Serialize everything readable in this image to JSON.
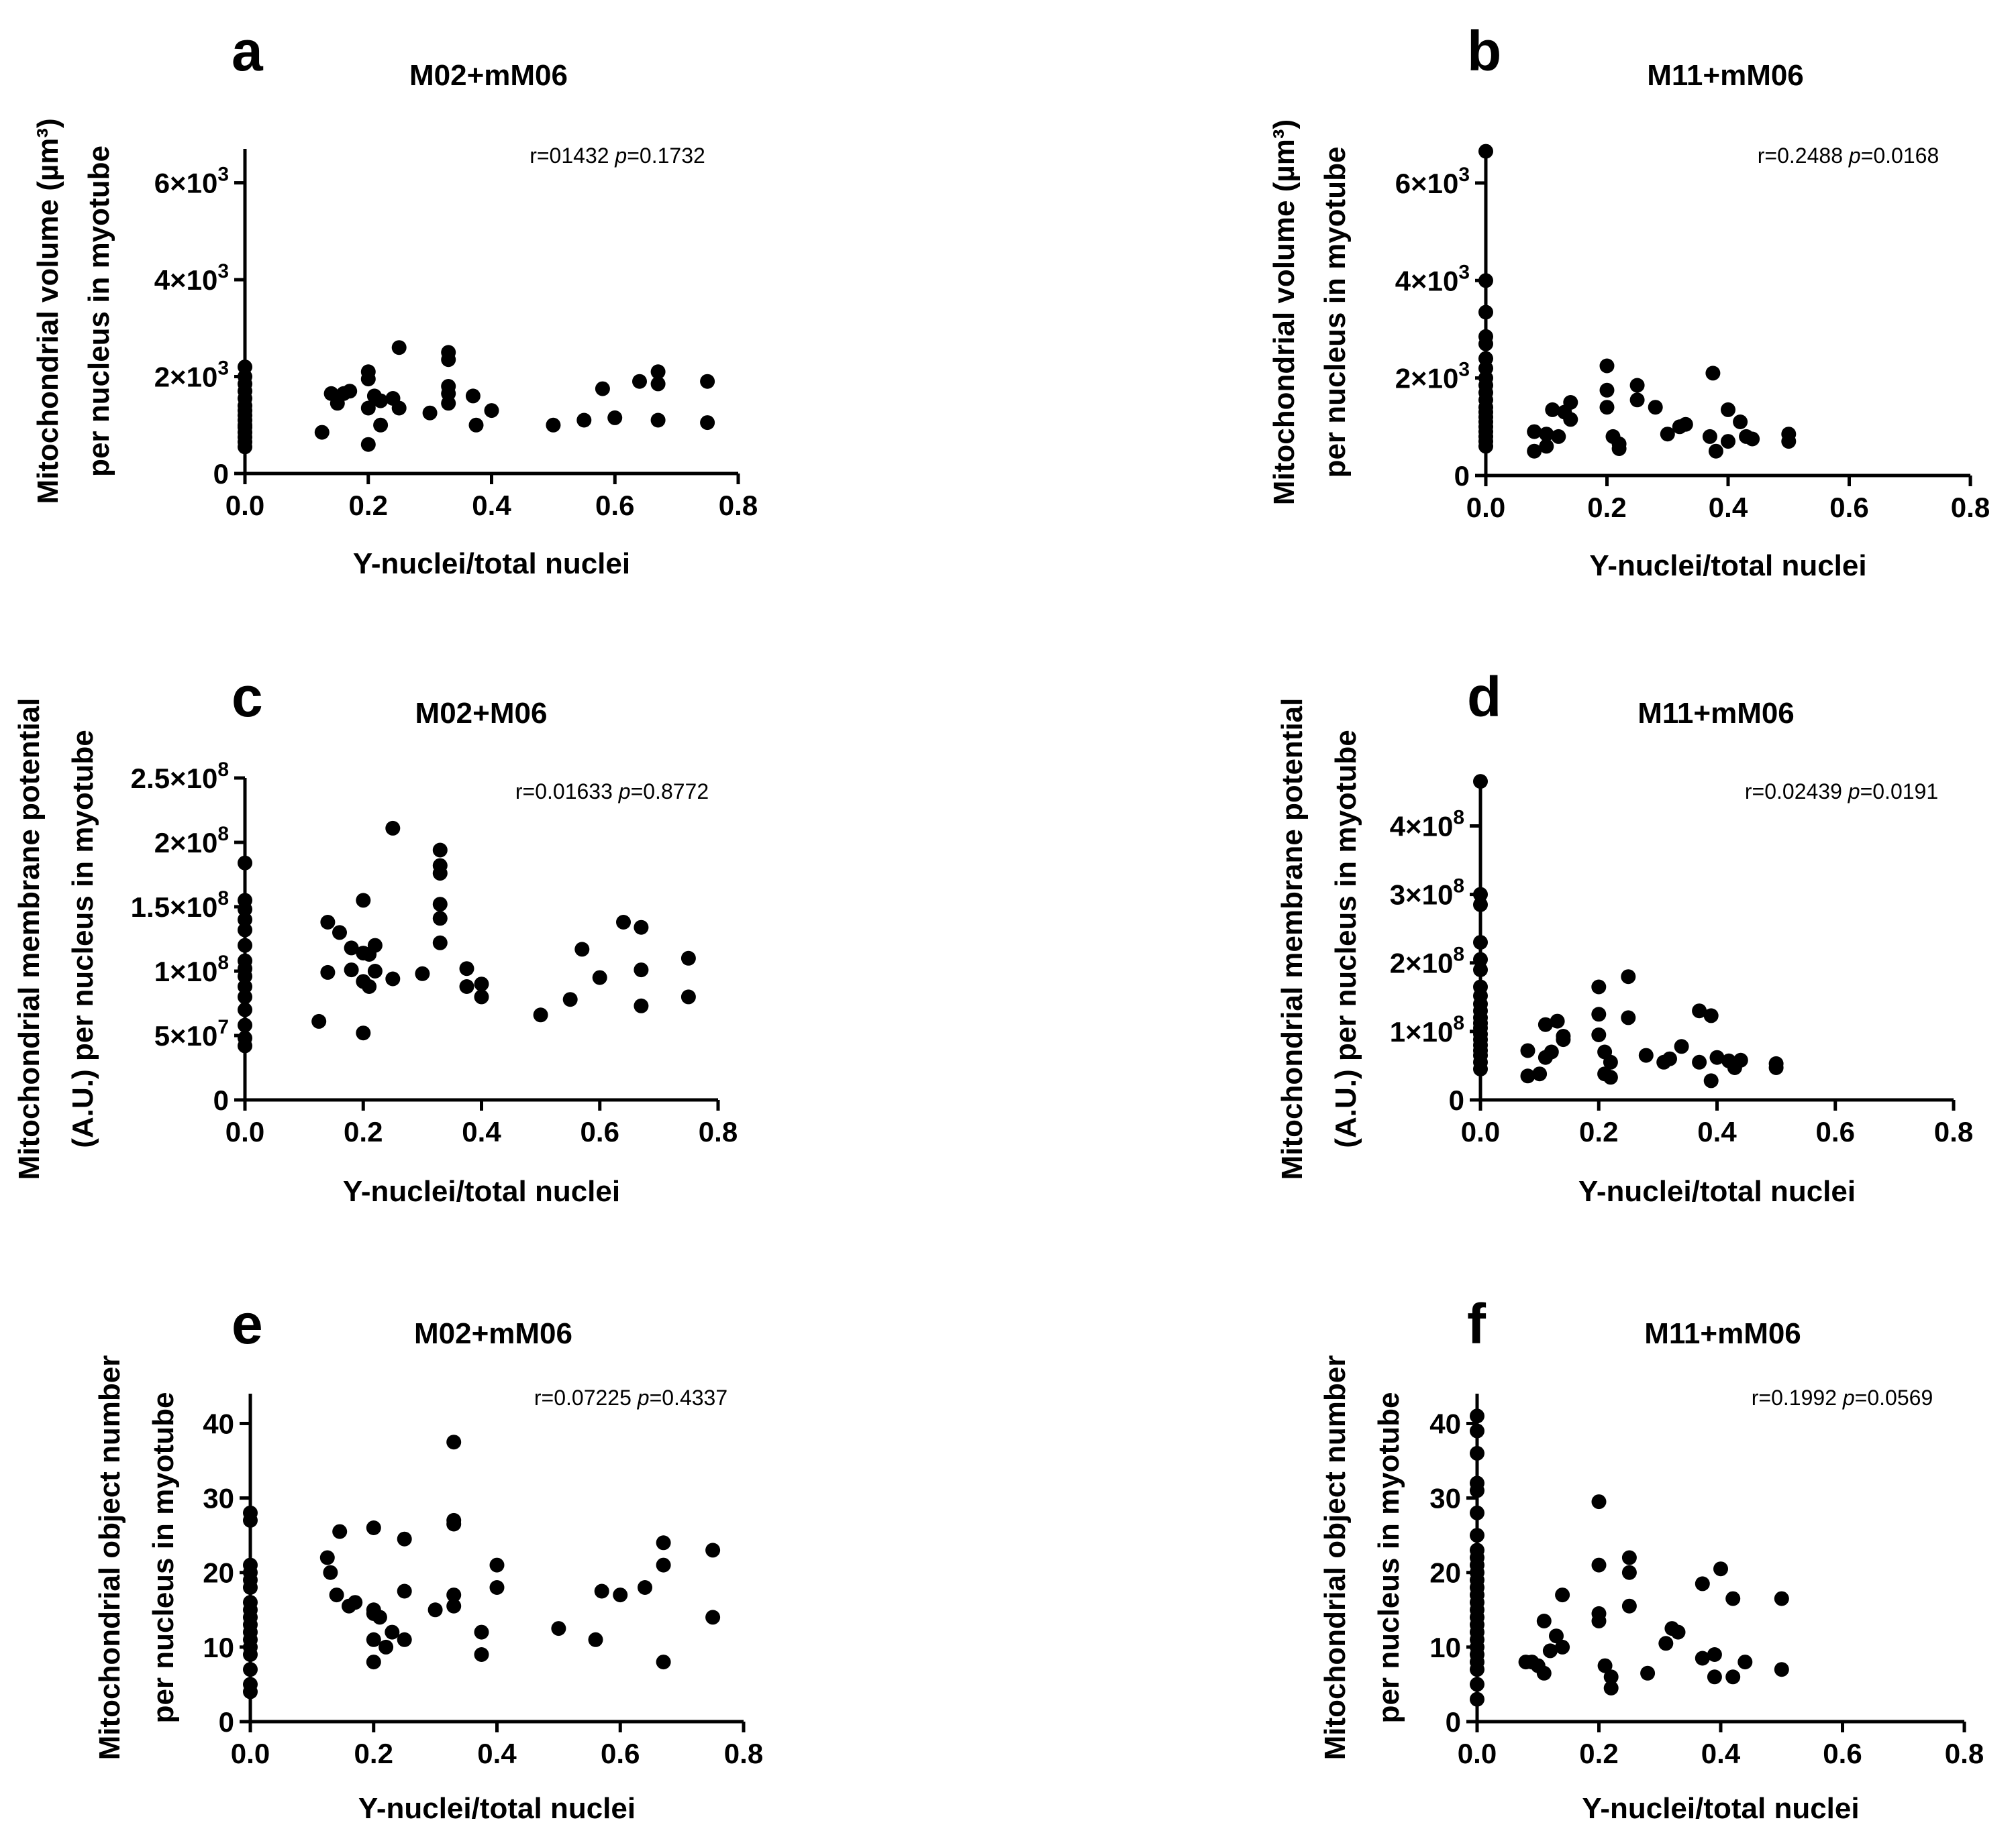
{
  "chart_data": [
    {
      "type": "scatter",
      "letter": "a",
      "title": "M02+mM06",
      "stats": {
        "r_label": "r=01432",
        "p_italic": "p",
        "p_value": "=0.1732"
      },
      "xlabel": "Y-nuclei/total nuclei",
      "ylabel_line1": "Mitochondrial volume (µm³)",
      "ylabel_line2": "per nucleus in myotube",
      "xlim": [
        0,
        0.8
      ],
      "ylim": [
        0,
        6700
      ],
      "xticks": [
        {
          "v": 0,
          "label": "0.0"
        },
        {
          "v": 0.2,
          "label": "0.2"
        },
        {
          "v": 0.4,
          "label": "0.4"
        },
        {
          "v": 0.6,
          "label": "0.6"
        },
        {
          "v": 0.8,
          "label": "0.8"
        }
      ],
      "yticks": [
        {
          "v": 0,
          "label": "0"
        },
        {
          "v": 2000,
          "base": "2×10",
          "exp": "3"
        },
        {
          "v": 4000,
          "base": "4×10",
          "exp": "3"
        },
        {
          "v": 6000,
          "base": "6×10",
          "exp": "3"
        }
      ],
      "x": [
        0,
        0,
        0,
        0,
        0,
        0,
        0,
        0,
        0,
        0,
        0,
        0,
        0,
        0,
        0,
        0.125,
        0.14,
        0.15,
        0.16,
        0.17,
        0.2,
        0.2,
        0.2,
        0.2,
        0.21,
        0.22,
        0.22,
        0.24,
        0.25,
        0.25,
        0.3,
        0.33,
        0.33,
        0.33,
        0.33,
        0.33,
        0.37,
        0.375,
        0.4,
        0.5,
        0.55,
        0.58,
        0.6,
        0.64,
        0.67,
        0.67,
        0.67,
        0.75,
        0.75
      ],
      "y": [
        2200,
        2000,
        1850,
        1700,
        1550,
        1400,
        1300,
        1200,
        1100,
        1000,
        950,
        850,
        750,
        650,
        550,
        850,
        1650,
        1450,
        1650,
        1700,
        2100,
        1950,
        1350,
        600,
        1600,
        1500,
        1000,
        1550,
        2600,
        1350,
        1250,
        2500,
        2350,
        1800,
        1650,
        1450,
        1600,
        1000,
        1300,
        1000,
        1100,
        1750,
        1150,
        1900,
        2100,
        1850,
        1100,
        1900,
        1050
      ]
    },
    {
      "type": "scatter",
      "letter": "b",
      "title": "M11+mM06",
      "stats": {
        "r_label": "r=0.2488",
        "p_italic": "p",
        "p_value": "=0.0168"
      },
      "xlabel": "Y-nuclei/total nuclei",
      "ylabel_line1": "Mitochondrial volume (µm³)",
      "ylabel_line2": "per nucleus in myotube",
      "xlim": [
        0,
        0.8
      ],
      "ylim": [
        0,
        6700
      ],
      "xticks": [
        {
          "v": 0,
          "label": "0.0"
        },
        {
          "v": 0.2,
          "label": "0.2"
        },
        {
          "v": 0.4,
          "label": "0.4"
        },
        {
          "v": 0.6,
          "label": "0.6"
        },
        {
          "v": 0.8,
          "label": "0.8"
        }
      ],
      "yticks": [
        {
          "v": 0,
          "label": "0"
        },
        {
          "v": 2000,
          "base": "2×10",
          "exp": "3"
        },
        {
          "v": 4000,
          "base": "4×10",
          "exp": "3"
        },
        {
          "v": 6000,
          "base": "6×10",
          "exp": "3"
        }
      ],
      "x": [
        0,
        0,
        0,
        0,
        0,
        0,
        0,
        0,
        0,
        0,
        0,
        0,
        0,
        0,
        0,
        0,
        0,
        0,
        0,
        0,
        0.08,
        0.08,
        0.1,
        0.1,
        0.11,
        0.12,
        0.13,
        0.14,
        0.14,
        0.2,
        0.2,
        0.2,
        0.21,
        0.22,
        0.22,
        0.25,
        0.25,
        0.28,
        0.3,
        0.32,
        0.33,
        0.37,
        0.375,
        0.38,
        0.4,
        0.4,
        0.42,
        0.43,
        0.44,
        0.5,
        0.5
      ],
      "y": [
        6650,
        4000,
        3350,
        2850,
        2700,
        2400,
        2200,
        2000,
        1850,
        1700,
        1550,
        1400,
        1300,
        1200,
        1100,
        1000,
        900,
        800,
        700,
        600,
        900,
        500,
        850,
        600,
        1350,
        800,
        1300,
        1500,
        1150,
        2250,
        1750,
        1400,
        800,
        650,
        550,
        1850,
        1550,
        1400,
        850,
        1000,
        1050,
        800,
        2100,
        500,
        1350,
        700,
        1100,
        800,
        750,
        850,
        700
      ]
    },
    {
      "type": "scatter",
      "letter": "c",
      "title": "M02+M06",
      "stats": {
        "r_label": "r=0.01633",
        "p_italic": "p",
        "p_value": "=0.8772"
      },
      "xlabel": "Y-nuclei/total nuclei",
      "ylabel_line1": "Mitochondrial membrane potential",
      "ylabel_line2": "(A.U.) per nucleus in myotube",
      "xlim": [
        0,
        0.8
      ],
      "ylim": [
        0,
        250000000
      ],
      "xticks": [
        {
          "v": 0,
          "label": "0.0"
        },
        {
          "v": 0.2,
          "label": "0.2"
        },
        {
          "v": 0.4,
          "label": "0.4"
        },
        {
          "v": 0.6,
          "label": "0.6"
        },
        {
          "v": 0.8,
          "label": "0.8"
        }
      ],
      "yticks": [
        {
          "v": 0,
          "label": "0"
        },
        {
          "v": 50000000,
          "base": "5×10",
          "exp": "7"
        },
        {
          "v": 100000000,
          "base": "1×10",
          "exp": "8"
        },
        {
          "v": 150000000,
          "base": "1.5×10",
          "exp": "8"
        },
        {
          "v": 200000000,
          "base": "2×10",
          "exp": "8"
        },
        {
          "v": 250000000,
          "base": "2.5×10",
          "exp": "8"
        }
      ],
      "x": [
        0,
        0,
        0,
        0,
        0,
        0,
        0,
        0,
        0,
        0,
        0,
        0,
        0,
        0,
        0,
        0.125,
        0.14,
        0.14,
        0.16,
        0.18,
        0.18,
        0.2,
        0.2,
        0.2,
        0.2,
        0.21,
        0.21,
        0.22,
        0.22,
        0.25,
        0.25,
        0.3,
        0.33,
        0.33,
        0.33,
        0.33,
        0.33,
        0.33,
        0.375,
        0.375,
        0.4,
        0.4,
        0.5,
        0.55,
        0.57,
        0.6,
        0.64,
        0.67,
        0.67,
        0.67,
        0.75,
        0.75
      ],
      "y": [
        184000000,
        155000000,
        148000000,
        140000000,
        132000000,
        120000000,
        108000000,
        102000000,
        96000000,
        88000000,
        80000000,
        70000000,
        58000000,
        48000000,
        42000000,
        61000000,
        138000000,
        99000000,
        130000000,
        118000000,
        101000000,
        155000000,
        114000000,
        92000000,
        52000000,
        113000000,
        88000000,
        120000000,
        100000000,
        211000000,
        94000000,
        98000000,
        194000000,
        182000000,
        176000000,
        152000000,
        141000000,
        122000000,
        102000000,
        88000000,
        90000000,
        80000000,
        66000000,
        78000000,
        117000000,
        95000000,
        138000000,
        134000000,
        101000000,
        73000000,
        110000000,
        80000000
      ]
    },
    {
      "type": "scatter",
      "letter": "d",
      "title": "M11+mM06",
      "stats": {
        "r_label": "r=0.02439",
        "p_italic": "p",
        "p_value": "=0.0191"
      },
      "xlabel": "Y-nuclei/total nuclei",
      "ylabel_line1": "Mitochondrial membrane potential",
      "ylabel_line2": "(A.U.) per nucleus in myotube",
      "xlim": [
        0,
        0.8
      ],
      "ylim": [
        0,
        470000000
      ],
      "xticks": [
        {
          "v": 0,
          "label": "0.0"
        },
        {
          "v": 0.2,
          "label": "0.2"
        },
        {
          "v": 0.4,
          "label": "0.4"
        },
        {
          "v": 0.6,
          "label": "0.6"
        },
        {
          "v": 0.8,
          "label": "0.8"
        }
      ],
      "yticks": [
        {
          "v": 0,
          "label": "0"
        },
        {
          "v": 100000000,
          "base": "1×10",
          "exp": "8"
        },
        {
          "v": 200000000,
          "base": "2×10",
          "exp": "8"
        },
        {
          "v": 300000000,
          "base": "3×10",
          "exp": "8"
        },
        {
          "v": 400000000,
          "base": "4×10",
          "exp": "8"
        }
      ],
      "x": [
        0,
        0,
        0,
        0,
        0,
        0,
        0,
        0,
        0,
        0,
        0,
        0,
        0,
        0,
        0,
        0,
        0,
        0,
        0,
        0,
        0.08,
        0.08,
        0.1,
        0.11,
        0.11,
        0.12,
        0.13,
        0.14,
        0.14,
        0.2,
        0.2,
        0.2,
        0.21,
        0.21,
        0.22,
        0.22,
        0.25,
        0.25,
        0.28,
        0.31,
        0.32,
        0.34,
        0.37,
        0.37,
        0.39,
        0.39,
        0.4,
        0.42,
        0.43,
        0.44,
        0.5,
        0.5
      ],
      "y": [
        465000000,
        300000000,
        285000000,
        230000000,
        205000000,
        190000000,
        165000000,
        152000000,
        140000000,
        130000000,
        120000000,
        112000000,
        105000000,
        96000000,
        88000000,
        80000000,
        72000000,
        65000000,
        55000000,
        45000000,
        35000000,
        72000000,
        38000000,
        110000000,
        62000000,
        70000000,
        115000000,
        93000000,
        88000000,
        165000000,
        125000000,
        95000000,
        70000000,
        38000000,
        55000000,
        33000000,
        180000000,
        120000000,
        65000000,
        55000000,
        60000000,
        78000000,
        130000000,
        55000000,
        123000000,
        28000000,
        62000000,
        57000000,
        47000000,
        58000000,
        53000000,
        47000000
      ]
    },
    {
      "type": "scatter",
      "letter": "e",
      "title": "M02+mM06",
      "stats": {
        "r_label": "r=0.07225",
        "p_italic": "p",
        "p_value": "=0.4337"
      },
      "xlabel": "Y-nuclei/total nuclei",
      "ylabel_line1": "Mitochondrial object number",
      "ylabel_line2": "per nucleus in myotube",
      "xlim": [
        0,
        0.8
      ],
      "ylim": [
        0,
        44
      ],
      "xticks": [
        {
          "v": 0,
          "label": "0.0"
        },
        {
          "v": 0.2,
          "label": "0.2"
        },
        {
          "v": 0.4,
          "label": "0.4"
        },
        {
          "v": 0.6,
          "label": "0.6"
        },
        {
          "v": 0.8,
          "label": "0.8"
        }
      ],
      "yticks": [
        {
          "v": 0,
          "label": "0"
        },
        {
          "v": 10,
          "label": "10"
        },
        {
          "v": 20,
          "label": "20"
        },
        {
          "v": 30,
          "label": "30"
        },
        {
          "v": 40,
          "label": "40"
        }
      ],
      "x": [
        0,
        0,
        0,
        0,
        0,
        0,
        0,
        0,
        0,
        0,
        0,
        0,
        0,
        0,
        0,
        0,
        0,
        0.125,
        0.13,
        0.14,
        0.145,
        0.16,
        0.17,
        0.2,
        0.2,
        0.2,
        0.2,
        0.2,
        0.21,
        0.22,
        0.23,
        0.25,
        0.25,
        0.25,
        0.3,
        0.33,
        0.33,
        0.33,
        0.33,
        0.33,
        0.375,
        0.375,
        0.4,
        0.4,
        0.5,
        0.56,
        0.57,
        0.6,
        0.64,
        0.67,
        0.67,
        0.67,
        0.75,
        0.75
      ],
      "y": [
        28,
        27,
        21,
        20,
        19,
        18,
        16,
        15,
        14,
        13,
        12,
        11,
        10,
        9,
        7,
        5,
        4,
        22,
        20,
        17,
        25.5,
        15.5,
        16,
        26,
        15,
        14.5,
        11,
        8,
        14,
        10,
        12,
        24.5,
        17.5,
        11,
        15,
        37.5,
        27,
        26.5,
        17,
        15.5,
        12,
        9,
        21,
        18,
        12.5,
        11,
        17.5,
        17,
        18,
        24,
        21,
        8,
        23,
        14
      ]
    },
    {
      "type": "scatter",
      "letter": "f",
      "title": "M11+mM06",
      "stats": {
        "r_label": "r=0.1992",
        "p_italic": "p",
        "p_value": "=0.0569"
      },
      "xlabel": "Y-nuclei/total nuclei",
      "ylabel_line1": "Mitochondrial object number",
      "ylabel_line2": "per nucleus in myotube",
      "xlim": [
        0,
        0.8
      ],
      "ylim": [
        0,
        44
      ],
      "xticks": [
        {
          "v": 0,
          "label": "0.0"
        },
        {
          "v": 0.2,
          "label": "0.2"
        },
        {
          "v": 0.4,
          "label": "0.4"
        },
        {
          "v": 0.6,
          "label": "0.6"
        },
        {
          "v": 0.8,
          "label": "0.8"
        }
      ],
      "yticks": [
        {
          "v": 0,
          "label": "0"
        },
        {
          "v": 10,
          "label": "10"
        },
        {
          "v": 20,
          "label": "20"
        },
        {
          "v": 30,
          "label": "30"
        },
        {
          "v": 40,
          "label": "40"
        }
      ],
      "x": [
        0,
        0,
        0,
        0,
        0,
        0,
        0,
        0,
        0,
        0,
        0,
        0,
        0,
        0,
        0,
        0,
        0,
        0,
        0,
        0,
        0,
        0,
        0,
        0,
        0,
        0,
        0.08,
        0.09,
        0.1,
        0.11,
        0.11,
        0.12,
        0.13,
        0.14,
        0.14,
        0.2,
        0.2,
        0.2,
        0.2,
        0.21,
        0.22,
        0.22,
        0.25,
        0.25,
        0.25,
        0.28,
        0.31,
        0.32,
        0.33,
        0.37,
        0.37,
        0.39,
        0.39,
        0.4,
        0.42,
        0.42,
        0.44,
        0.5,
        0.5
      ],
      "y": [
        41,
        39,
        36,
        32,
        31,
        28,
        25,
        23,
        22,
        21,
        20,
        19,
        18,
        17,
        16,
        15,
        14,
        13,
        12,
        11,
        10,
        9,
        8,
        7,
        5,
        3,
        8,
        8,
        7.5,
        13.5,
        6.5,
        9.5,
        11.5,
        17,
        10,
        29.5,
        21,
        14.5,
        13.5,
        7.5,
        6,
        4.5,
        22,
        20,
        15.5,
        6.5,
        10.5,
        12.5,
        12,
        18.5,
        8.5,
        6,
        9,
        20.5,
        16.5,
        6,
        8,
        16.5,
        7
      ]
    }
  ]
}
